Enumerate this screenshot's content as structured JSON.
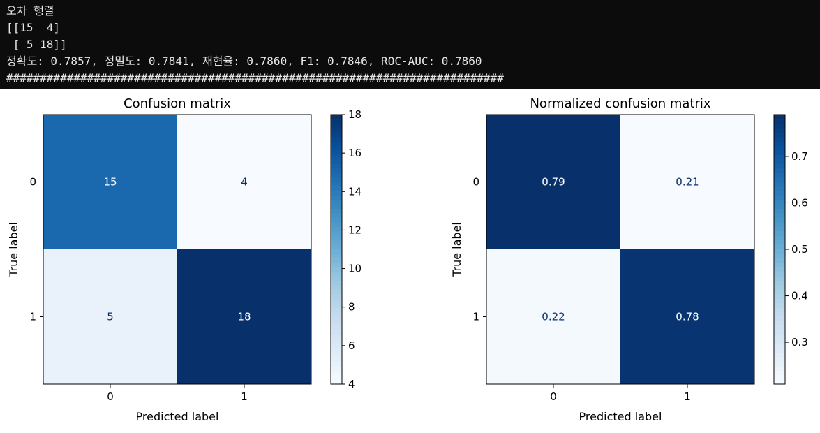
{
  "console": {
    "lines": [
      "오차 행렬",
      "[[15  4]",
      " [ 5 18]]",
      "정확도: 0.7857, 정밀도: 0.7841, 재현율: 0.7860, F1: 0.7846, ROC-AUC: 0.7860",
      "##########################################################################"
    ]
  },
  "chart_data": [
    {
      "type": "heatmap",
      "title": "Confusion matrix",
      "xlabel": "Predicted label",
      "ylabel": "True label",
      "x_categories": [
        "0",
        "1"
      ],
      "y_categories": [
        "0",
        "1"
      ],
      "values": [
        [
          15,
          4
        ],
        [
          5,
          18
        ]
      ],
      "cell_labels": [
        [
          "15",
          "4"
        ],
        [
          "5",
          "18"
        ]
      ],
      "colormap": "Blues",
      "vmin": 4,
      "vmax": 18,
      "colorbar_ticks": [
        4,
        6,
        8,
        10,
        12,
        14,
        16,
        18
      ],
      "colorbar_tick_labels": [
        "4",
        "6",
        "8",
        "10",
        "12",
        "14",
        "16",
        "18"
      ]
    },
    {
      "type": "heatmap",
      "title": "Normalized confusion matrix",
      "xlabel": "Predicted label",
      "ylabel": "True label",
      "x_categories": [
        "0",
        "1"
      ],
      "y_categories": [
        "0",
        "1"
      ],
      "values": [
        [
          0.79,
          0.21
        ],
        [
          0.22,
          0.78
        ]
      ],
      "cell_labels": [
        [
          "0.79",
          "0.21"
        ],
        [
          "0.22",
          "0.78"
        ]
      ],
      "colormap": "Blues",
      "vmin": 0.21,
      "vmax": 0.79,
      "colorbar_ticks": [
        0.3,
        0.4,
        0.5,
        0.6,
        0.7
      ],
      "colorbar_tick_labels": [
        "0.3",
        "0.4",
        "0.5",
        "0.6",
        "0.7"
      ]
    }
  ]
}
